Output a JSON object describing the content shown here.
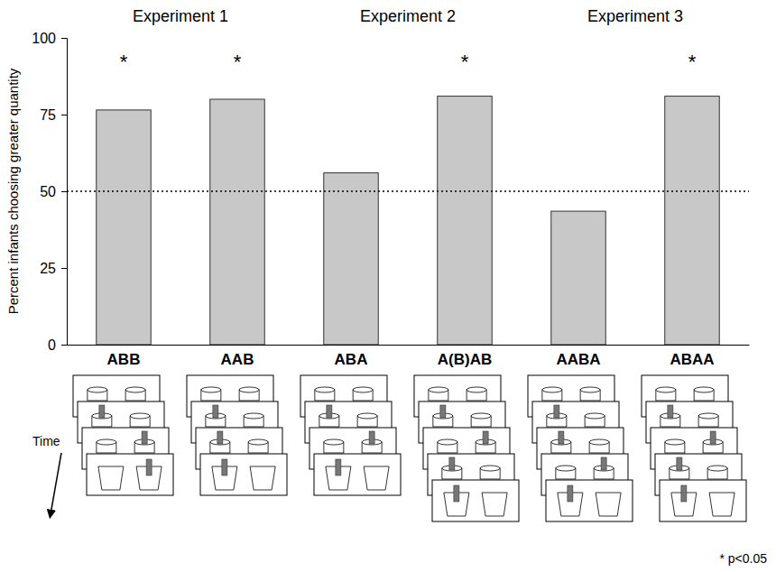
{
  "chart_data": {
    "type": "bar",
    "categories": [
      "ABB",
      "AAB",
      "ABA",
      "A(B)AB",
      "AABA",
      "ABAA"
    ],
    "values": [
      76.5,
      80,
      56,
      81,
      43.5,
      81
    ],
    "color": "#c8c8c8",
    "ylim": [
      0,
      100
    ],
    "yticks": [
      0,
      25,
      50,
      75,
      100
    ],
    "y_label": "Percent infants choosing greater quantity",
    "groups": [
      "Experiment 1",
      "Experiment 1",
      "Experiment 2",
      "Experiment 2",
      "Experiment 3",
      "Experiment 3"
    ],
    "significance": [
      "*",
      "*",
      null,
      "*",
      null,
      "*"
    ],
    "chance_level": 50,
    "annotations": [
      "Time",
      "* p<0.05"
    ],
    "grid": false
  }
}
